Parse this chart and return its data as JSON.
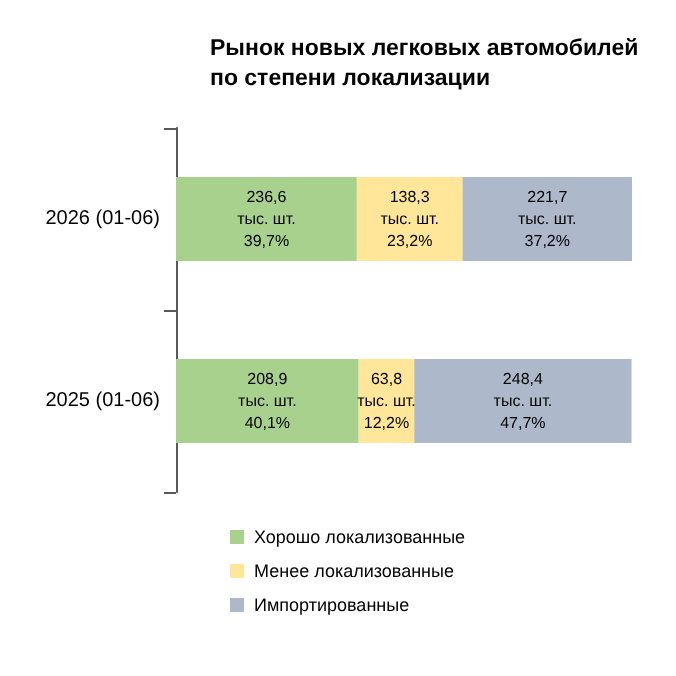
{
  "chart_data": {
    "type": "bar",
    "title": "Рынок новых легковых автомобилей\nпо степени локализации",
    "orientation": "horizontal",
    "stacked": true,
    "grid": false,
    "legend": "bottom left",
    "categories": [
      "2026 (01-06)",
      "2025 (01-06)"
    ],
    "series": [
      {
        "name": "Хорошо локализованные",
        "color": "#a9d18e",
        "values": [
          39.7,
          40.1
        ],
        "value_labels": [
          "236,6\nтыс. шт.\n39,7%",
          "208,9\nтыс. шт.\n40,1%"
        ]
      },
      {
        "name": "Менее локализованные",
        "color": "#ffe699",
        "values": [
          23.2,
          12.2
        ],
        "value_labels": [
          "138,3\nтыс. шт.\n23,2%",
          "63,8\nтыс. шт.\n12,2%"
        ]
      },
      {
        "name": "Импортированные",
        "color": "#adb9ca",
        "values": [
          37.2,
          47.7
        ],
        "value_labels": [
          "221,7\nтыс. шт.\n37,2%",
          "248,4\nтыс. шт.\n47,7%"
        ]
      }
    ]
  }
}
